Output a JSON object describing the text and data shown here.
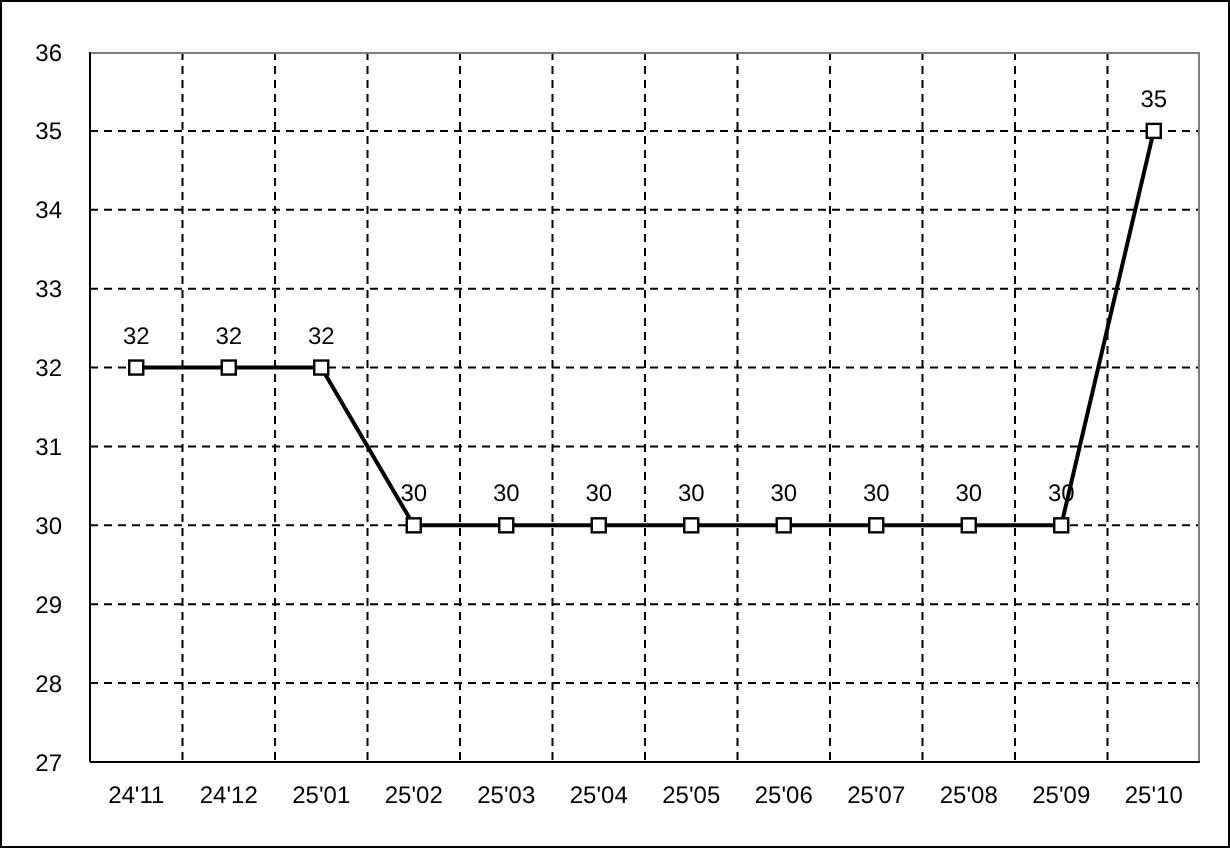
{
  "chart_data": {
    "type": "line",
    "categories": [
      "24'11",
      "24'12",
      "25'01",
      "25'02",
      "25'03",
      "25'04",
      "25'05",
      "25'06",
      "25'07",
      "25'08",
      "25'09",
      "25'10"
    ],
    "values": [
      32,
      32,
      32,
      30,
      30,
      30,
      30,
      30,
      30,
      30,
      30,
      35
    ],
    "color": "#000000",
    "ylim": [
      27,
      36
    ],
    "yticks": [
      27,
      28,
      29,
      30,
      31,
      32,
      33,
      34,
      35,
      36
    ],
    "grid": true,
    "marker": "square",
    "line_style": "solid",
    "data_labels": true
  }
}
